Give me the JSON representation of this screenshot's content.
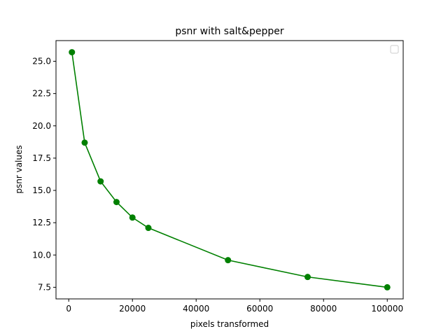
{
  "chart_data": {
    "type": "line",
    "title": "psnr with salt&pepper",
    "xlabel": "pixels transformed",
    "ylabel": "psnr values",
    "xlim": [
      -4000,
      105000
    ],
    "ylim": [
      6.6,
      26.6
    ],
    "x_ticks": [
      0,
      20000,
      40000,
      60000,
      80000,
      100000
    ],
    "y_ticks": [
      7.5,
      10.0,
      12.5,
      15.0,
      17.5,
      20.0,
      22.5,
      25.0
    ],
    "x_tick_labels": [
      "0",
      "20000",
      "40000",
      "60000",
      "80000",
      "100000"
    ],
    "y_tick_labels": [
      "7.5",
      "10.0",
      "12.5",
      "15.0",
      "17.5",
      "20.0",
      "22.5",
      "25.0"
    ],
    "grid": false,
    "legend": "top-right (empty)",
    "series": [
      {
        "color": "#008000",
        "marker": "circle",
        "x": [
          1000,
          5000,
          10000,
          15000,
          20000,
          25000,
          50000,
          75000,
          100000
        ],
        "y": [
          25.7,
          18.7,
          15.7,
          14.1,
          12.9,
          12.1,
          9.6,
          8.3,
          7.5
        ]
      }
    ]
  }
}
